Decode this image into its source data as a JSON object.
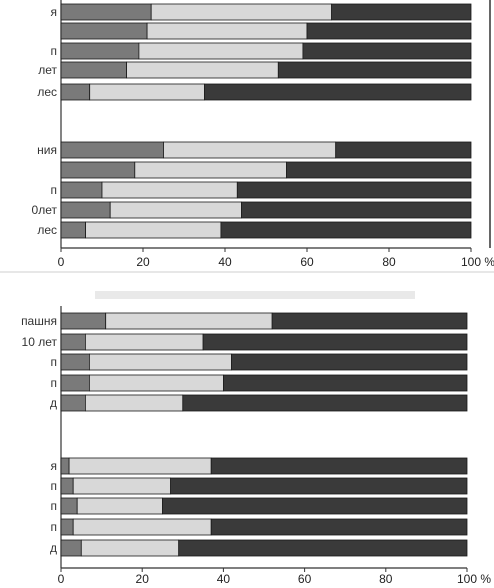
{
  "chart_data": [
    {
      "type": "bar",
      "stacked": true,
      "orientation": "horizontal",
      "xlim": [
        0,
        100
      ],
      "xticks": [
        0,
        20,
        40,
        60,
        80,
        100
      ],
      "x_unit": "%",
      "grid": false,
      "colors": [
        "#7a7a7a",
        "#d8d8d8",
        "#3a3a3a"
      ],
      "groups": [
        {
          "categories": [
            "я",
            "",
            "п",
            "лет",
            "лес"
          ],
          "segments": [
            [
              22,
              44,
              34
            ],
            [
              21,
              39,
              40
            ],
            [
              19,
              40,
              41
            ],
            [
              16,
              37,
              47
            ],
            [
              7,
              28,
              65
            ]
          ]
        },
        {
          "categories": [
            "ния",
            "",
            "п",
            "0лет",
            "лес"
          ],
          "segments": [
            [
              25,
              42,
              33
            ],
            [
              18,
              37,
              45
            ],
            [
              10,
              33,
              57
            ],
            [
              12,
              32,
              56
            ],
            [
              6,
              33,
              61
            ]
          ]
        }
      ]
    },
    {
      "type": "bar",
      "stacked": true,
      "orientation": "horizontal",
      "xlim": [
        0,
        100
      ],
      "xticks": [
        0,
        20,
        40,
        60,
        80,
        100
      ],
      "x_unit": "%",
      "grid": false,
      "colors": [
        "#7a7a7a",
        "#d8d8d8",
        "#3a3a3a"
      ],
      "groups": [
        {
          "categories": [
            "пашня",
            "10 лет",
            "п",
            "п",
            "д"
          ],
          "segments": [
            [
              11,
              41,
              48
            ],
            [
              6,
              29,
              65
            ],
            [
              7,
              35,
              58
            ],
            [
              7,
              33,
              60
            ],
            [
              6,
              24,
              70
            ]
          ]
        },
        {
          "categories": [
            "я",
            "п",
            "п",
            "п",
            "д"
          ],
          "segments": [
            [
              2,
              35,
              63
            ],
            [
              3,
              24,
              73
            ],
            [
              4,
              21,
              75
            ],
            [
              3,
              34,
              63
            ],
            [
              5,
              24,
              71
            ]
          ]
        }
      ]
    }
  ]
}
